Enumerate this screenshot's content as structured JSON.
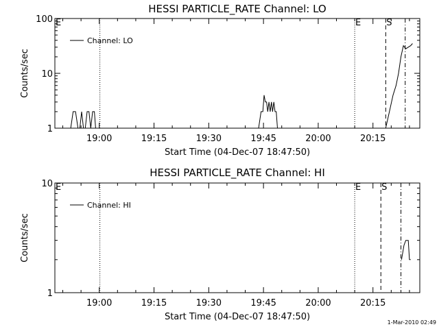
{
  "chart_data": [
    {
      "type": "line",
      "title": "HESSI PARTICLE_RATE Channel: LO",
      "xlabel": "Start Time (04-Dec-07 18:47:50)",
      "ylabel": "Counts/sec",
      "yscale": "log",
      "ylim": [
        1,
        100
      ],
      "xlim": [
        "18:47:50",
        "20:27:50"
      ],
      "x_ticks": [
        "19:00",
        "19:15",
        "19:30",
        "19:45",
        "20:00",
        "20:15"
      ],
      "y_ticks": [
        "1",
        "10",
        "100"
      ],
      "legend": "top-left",
      "grid": false,
      "series": [
        {
          "name": "Channel: LO",
          "x": [
            "18:52:10",
            "18:52:50",
            "18:53:30",
            "18:54:10",
            "18:54:40",
            "18:55:10",
            "18:55:40",
            "18:56:10",
            "18:56:40",
            "18:57:10",
            "18:57:40",
            "18:58:10",
            "18:58:40",
            "18:59:00",
            "18:59:20",
            "19:43:40",
            "19:44:20",
            "19:44:50",
            "19:45:10",
            "19:45:30",
            "19:45:50",
            "19:46:10",
            "19:46:30",
            "19:46:50",
            "19:47:10",
            "19:47:30",
            "19:47:50",
            "19:48:10",
            "19:48:30",
            "19:48:50",
            "19:49:20",
            "20:18:30",
            "20:19:30",
            "20:20:30",
            "20:21:20",
            "20:22:00",
            "20:22:40",
            "20:23:20",
            "20:24:00",
            "20:24:40",
            "20:25:20",
            "20:25:50"
          ],
          "values": [
            1,
            2,
            2,
            1,
            1,
            2,
            1,
            1,
            2,
            2,
            1,
            2,
            2,
            1,
            1,
            1,
            2,
            2,
            4,
            3,
            3,
            2,
            3,
            2,
            3,
            2,
            3,
            2,
            2,
            1,
            1,
            1,
            2,
            4,
            6,
            10,
            20,
            32,
            28,
            30,
            32,
            35
          ]
        }
      ],
      "markers": [
        {
          "label": "",
          "x": "19:00:10",
          "style": "dotted"
        },
        {
          "label": "E",
          "x": "20:10:00",
          "style": "dotted"
        },
        {
          "label": "S",
          "x": "20:18:30",
          "style": "dashed"
        },
        {
          "label": "",
          "x": "20:23:50",
          "style": "dashdot"
        }
      ],
      "corner_label": "E"
    },
    {
      "type": "line",
      "title": "HESSI PARTICLE_RATE Channel: HI",
      "xlabel": "Start Time (04-Dec-07 18:47:50)",
      "ylabel": "Counts/sec",
      "yscale": "log",
      "ylim": [
        1,
        10
      ],
      "xlim": [
        "18:47:50",
        "20:27:50"
      ],
      "x_ticks": [
        "19:00",
        "19:15",
        "19:30",
        "19:45",
        "20:00",
        "20:15"
      ],
      "y_ticks": [
        "1",
        "10"
      ],
      "legend": "top-left",
      "grid": false,
      "series": [
        {
          "name": "Channel: HI",
          "x": [
            "20:22:50",
            "20:23:30",
            "20:24:00",
            "20:24:40",
            "20:25:00",
            "20:25:20"
          ],
          "values": [
            2,
            2.7,
            3,
            3,
            2,
            2
          ]
        }
      ],
      "markers": [
        {
          "label": "",
          "x": "19:00:10",
          "style": "dotted"
        },
        {
          "label": "E",
          "x": "20:10:00",
          "style": "dotted"
        },
        {
          "label": "S",
          "x": "20:17:10",
          "style": "dashed"
        },
        {
          "label": "",
          "x": "20:22:40",
          "style": "dashdot"
        }
      ],
      "corner_label": "E"
    }
  ],
  "footer": {
    "timestamp": "1-Mar-2010 02:49"
  }
}
